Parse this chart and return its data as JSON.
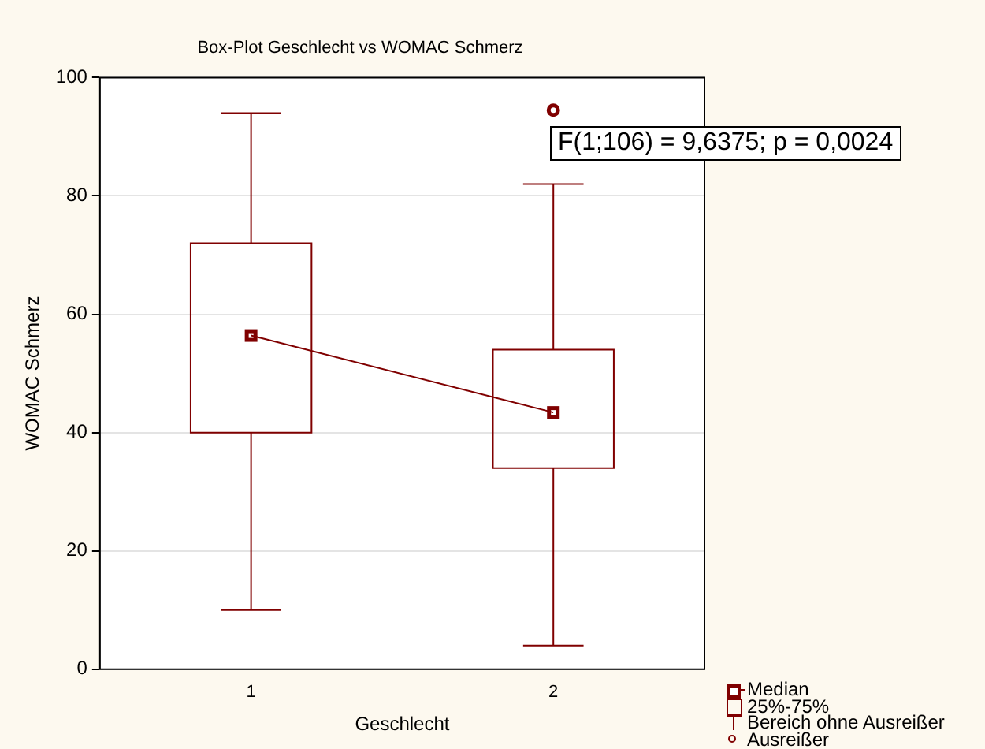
{
  "chart_data": {
    "type": "box",
    "title": "Box-Plot Geschlecht vs WOMAC Schmerz",
    "xlabel": "Geschlecht",
    "ylabel": "WOMAC Schmerz",
    "categories": [
      "1",
      "2"
    ],
    "series": [
      {
        "name": "25%-75%",
        "color": "#800000",
        "boxes": [
          {
            "low": 10,
            "q1": 40,
            "median": 56.4,
            "q3": 72,
            "high": 94
          },
          {
            "low": 4,
            "q1": 34,
            "median": 43.4,
            "q3": 54,
            "high": 82
          }
        ]
      },
      {
        "type": "line",
        "name": "Median",
        "color": "#800000",
        "values": [
          56.4,
          43.4
        ]
      },
      {
        "type": "scatter",
        "name": "Ausreißer",
        "color": "#800000",
        "x": [
          "2"
        ],
        "values": [
          94.5
        ],
        "marker": "circle"
      }
    ],
    "ylim": [
      0,
      100
    ],
    "yticks": [
      0,
      20,
      40,
      60,
      80,
      100
    ],
    "grid": "y",
    "legend": "bottom right",
    "annotations": [
      "F(1;106) = 9,6375; p = 0,0024",
      "Bereich ohne Ausreißer"
    ]
  }
}
